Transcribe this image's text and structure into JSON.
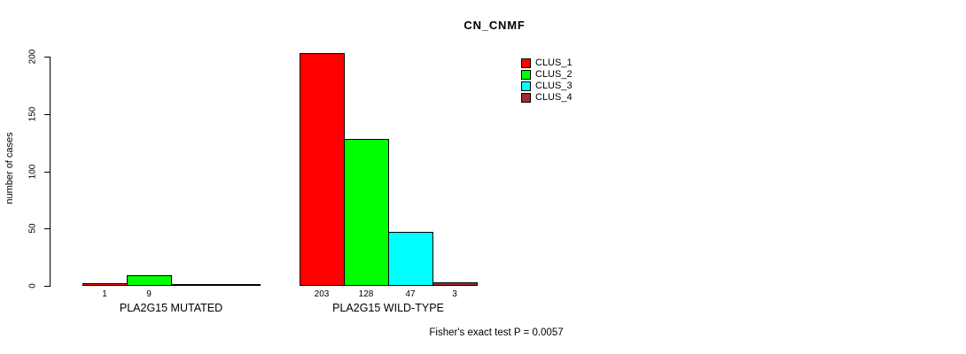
{
  "chart_data": {
    "type": "bar",
    "title": "CN_CNMF",
    "xlabel": "",
    "ylabel": "number of cases",
    "ylim": [
      0,
      200
    ],
    "yticks": [
      0,
      50,
      100,
      150,
      200
    ],
    "grid": false,
    "legend_position": "top-right-inside",
    "legend": [
      {
        "label": "CLUS_1",
        "color": "#FF0000"
      },
      {
        "label": "CLUS_2",
        "color": "#00FF00"
      },
      {
        "label": "CLUS_3",
        "color": "#00FFFF"
      },
      {
        "label": "CLUS_4",
        "color": "#A52A2A"
      }
    ],
    "groups": [
      {
        "label": "PLA2G15 MUTATED",
        "values": [
          1,
          9,
          0,
          0
        ],
        "bar_labels": [
          "1",
          "9",
          "",
          ""
        ]
      },
      {
        "label": "PLA2G15 WILD-TYPE",
        "values": [
          203,
          128,
          47,
          3
        ],
        "bar_labels": [
          "203",
          "128",
          "47",
          "3"
        ]
      }
    ],
    "annotation": "Fisher's exact test P = 0.0057",
    "colors": {
      "background": "#FFFFFF",
      "axis": "#000000",
      "bar_border": "#000000",
      "text": "#000000"
    }
  }
}
